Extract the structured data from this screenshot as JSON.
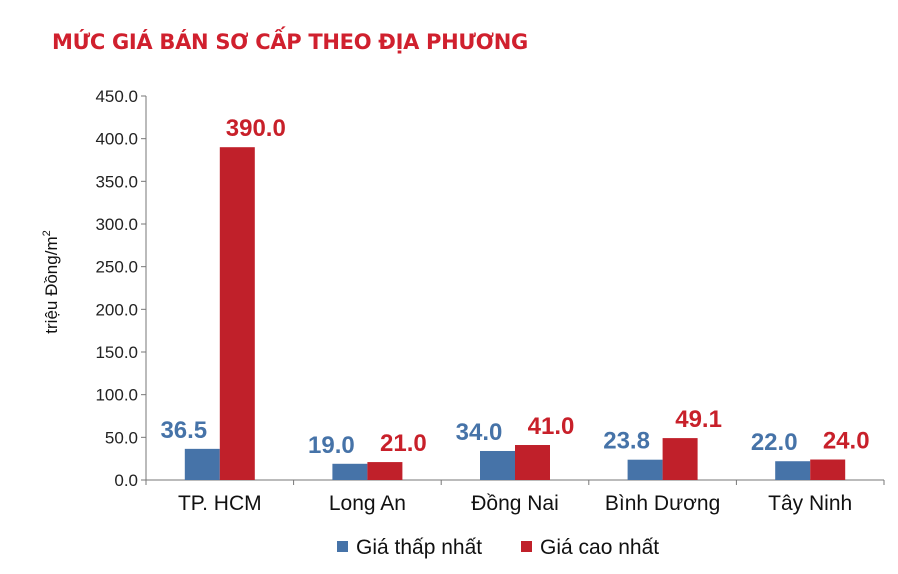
{
  "chart_data": {
    "type": "bar",
    "title": "MỨC GIÁ BÁN SƠ CẤP THEO ĐỊA PHƯƠNG",
    "ylabel": "triệu Đồng/m",
    "ylabel_sup": "2",
    "categories": [
      "TP. HCM",
      "Long An",
      "Đồng Nai",
      "Bình Dương",
      "Tây Ninh"
    ],
    "series": [
      {
        "name": "Giá thấp nhất",
        "values": [
          36.5,
          19.0,
          34.0,
          23.8,
          22.0
        ],
        "color": "#4673a8",
        "label_color": "#4673a8"
      },
      {
        "name": "Giá cao nhất",
        "values": [
          390.0,
          21.0,
          41.0,
          49.1,
          24.0
        ],
        "color": "#c0202a",
        "label_color": "#c8202a"
      }
    ],
    "ylim": [
      0,
      450
    ],
    "yticks": [
      "0.0",
      "50.0",
      "100.0",
      "150.0",
      "200.0",
      "250.0",
      "300.0",
      "350.0",
      "400.0",
      "450.0"
    ],
    "data_labels": [
      [
        "36.5",
        "19.0",
        "34.0",
        "23.8",
        "22.0"
      ],
      [
        "390.0",
        "21.0",
        "41.0",
        "49.1",
        "24.0"
      ]
    ],
    "grid": false,
    "legend": "bottom"
  }
}
